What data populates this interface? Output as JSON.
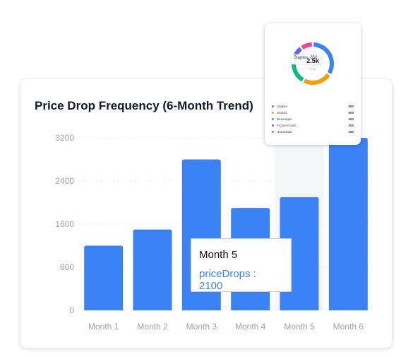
{
  "card": {
    "title": "Price Drop Frequency (6-Month Trend)"
  },
  "chart_data": {
    "type": "bar",
    "title": "Price Drop Frequency (6-Month Trend)",
    "categories": [
      "Month 1",
      "Month 2",
      "Month 3",
      "Month 4",
      "Month 5",
      "Month 6"
    ],
    "series": [
      {
        "name": "priceDrops",
        "values": [
          1200,
          1500,
          2800,
          1900,
          2100,
          3200
        ],
        "color": "#3b82f6"
      }
    ],
    "yticks": [
      "0",
      "800",
      "1600",
      "2400",
      "3200"
    ],
    "ylim": [
      0,
      3200
    ],
    "grid": "horizontal-dashed",
    "highlighted_category": "Month 5"
  },
  "tooltip": {
    "label": "Month 5",
    "value_text": "priceDrops : 2100"
  },
  "mini_chart": {
    "type": "pie",
    "center_text": "2.5k",
    "hover_label": "Staples: 850",
    "sublabel": "TOTAL",
    "slices": [
      {
        "name": "Staples",
        "value": 850,
        "value_text": "850",
        "color": "#3b82f6"
      },
      {
        "name": "Snacks",
        "value": 600,
        "value_text": "600",
        "color": "#f59e0b"
      },
      {
        "name": "Beverages",
        "value": 450,
        "value_text": "450",
        "color": "#10b981"
      },
      {
        "name": "Frozen Foods",
        "value": 350,
        "value_text": "350",
        "color": "#6366f1"
      },
      {
        "name": "Household",
        "value": 250,
        "value_text": "250",
        "color": "#ec4899"
      }
    ]
  }
}
